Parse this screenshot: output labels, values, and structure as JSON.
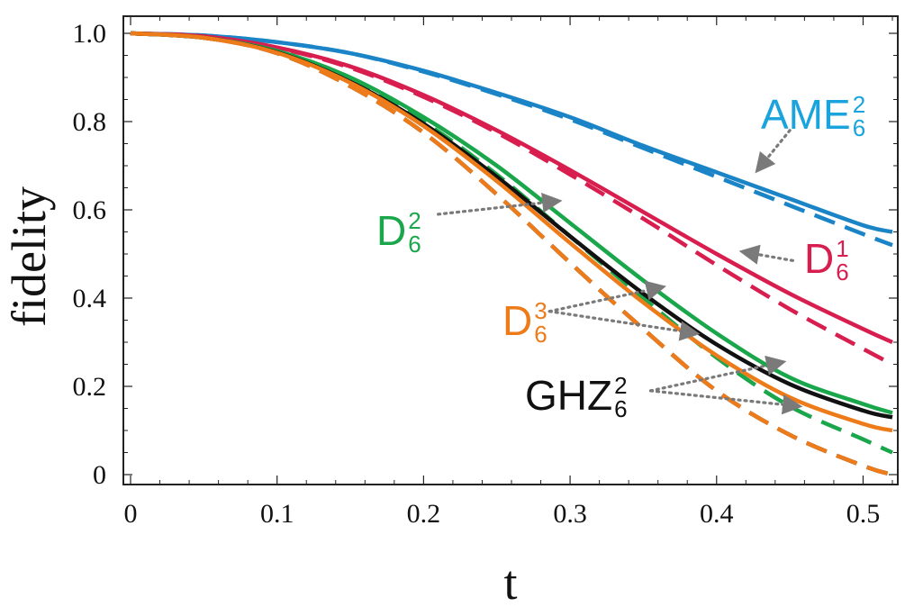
{
  "chart_data": {
    "type": "line",
    "xlabel": "t",
    "ylabel": "fidelity",
    "xlim": [
      0,
      0.52
    ],
    "ylim": [
      0,
      1.0
    ],
    "x_ticks": [
      "0",
      "0.1",
      "0.2",
      "0.3",
      "0.4",
      "0.5"
    ],
    "y_ticks": [
      "0",
      "0.2",
      "0.4",
      "0.6",
      "0.8",
      "1.0"
    ],
    "grid": false,
    "series": [
      {
        "name": "AME_6^2 exact",
        "state": "AME",
        "style": "solid",
        "color": "#1a84c7",
        "x": [
          0,
          0.05,
          0.1,
          0.15,
          0.2,
          0.25,
          0.3,
          0.35,
          0.4,
          0.45,
          0.5,
          0.52
        ],
        "y": [
          1.0,
          0.995,
          0.98,
          0.955,
          0.915,
          0.865,
          0.81,
          0.745,
          0.685,
          0.625,
          0.565,
          0.55
        ]
      },
      {
        "name": "AME_6^2 approx",
        "state": "AME",
        "style": "dashed",
        "color": "#1a84c7",
        "x": [
          0,
          0.05,
          0.1,
          0.15,
          0.2,
          0.25,
          0.3,
          0.35,
          0.4,
          0.45,
          0.5,
          0.52
        ],
        "y": [
          1.0,
          0.995,
          0.98,
          0.955,
          0.913,
          0.862,
          0.805,
          0.74,
          0.675,
          0.61,
          0.545,
          0.52
        ]
      },
      {
        "name": "D_6^1 exact",
        "state": "D1",
        "style": "solid",
        "color": "#d81e4f",
        "x": [
          0,
          0.05,
          0.1,
          0.15,
          0.2,
          0.25,
          0.3,
          0.35,
          0.4,
          0.45,
          0.5,
          0.52
        ],
        "y": [
          1.0,
          0.993,
          0.968,
          0.925,
          0.86,
          0.78,
          0.69,
          0.595,
          0.5,
          0.41,
          0.33,
          0.3
        ]
      },
      {
        "name": "D_6^1 approx",
        "state": "D1",
        "style": "dashed",
        "color": "#d81e4f",
        "x": [
          0,
          0.05,
          0.1,
          0.15,
          0.2,
          0.25,
          0.3,
          0.35,
          0.4,
          0.45,
          0.5,
          0.52
        ],
        "y": [
          1.0,
          0.993,
          0.967,
          0.922,
          0.856,
          0.775,
          0.68,
          0.58,
          0.475,
          0.375,
          0.285,
          0.25
        ]
      },
      {
        "name": "D_6^2 exact",
        "state": "D2",
        "style": "solid",
        "color": "#1aa64b",
        "x": [
          0,
          0.05,
          0.1,
          0.15,
          0.2,
          0.25,
          0.3,
          0.35,
          0.4,
          0.45,
          0.5,
          0.52
        ],
        "y": [
          1.0,
          0.99,
          0.96,
          0.9,
          0.81,
          0.7,
          0.57,
          0.44,
          0.32,
          0.22,
          0.16,
          0.14
        ]
      },
      {
        "name": "D_6^2 approx",
        "state": "D2",
        "style": "dashed",
        "color": "#1aa64b",
        "x": [
          0,
          0.05,
          0.1,
          0.15,
          0.2,
          0.25,
          0.3,
          0.35,
          0.4,
          0.45,
          0.5,
          0.52
        ],
        "y": [
          1.0,
          0.99,
          0.958,
          0.895,
          0.8,
          0.68,
          0.54,
          0.4,
          0.265,
          0.155,
          0.08,
          0.05
        ]
      },
      {
        "name": "GHZ_6^2 exact",
        "state": "GHZ",
        "style": "solid",
        "color": "#111111",
        "x": [
          0,
          0.05,
          0.1,
          0.15,
          0.2,
          0.25,
          0.3,
          0.35,
          0.4,
          0.45,
          0.5,
          0.52
        ],
        "y": [
          1.0,
          0.99,
          0.957,
          0.89,
          0.795,
          0.675,
          0.54,
          0.41,
          0.295,
          0.205,
          0.145,
          0.13
        ]
      },
      {
        "name": "GHZ_6^2 approx",
        "state": "GHZ",
        "style": "dashed",
        "color": "#111111",
        "x": [
          0,
          0.05,
          0.1,
          0.15,
          0.2,
          0.25,
          0.3,
          0.35,
          0.4,
          0.45,
          0.5,
          0.52
        ],
        "y": [
          1.0,
          0.99,
          0.955,
          0.88,
          0.775,
          0.635,
          0.48,
          0.33,
          0.19,
          0.09,
          0.02,
          0.0
        ]
      },
      {
        "name": "D_6^3 exact",
        "state": "D3",
        "style": "solid",
        "color": "#ee7b1a",
        "x": [
          0,
          0.05,
          0.1,
          0.15,
          0.2,
          0.25,
          0.3,
          0.35,
          0.4,
          0.45,
          0.5,
          0.52
        ],
        "y": [
          1.0,
          0.99,
          0.956,
          0.888,
          0.79,
          0.665,
          0.525,
          0.39,
          0.27,
          0.175,
          0.115,
          0.1
        ]
      },
      {
        "name": "D_6^3 approx",
        "state": "D3",
        "style": "dashed",
        "color": "#ee7b1a",
        "x": [
          0,
          0.05,
          0.1,
          0.15,
          0.2,
          0.25,
          0.3,
          0.35,
          0.4,
          0.45,
          0.5,
          0.52
        ],
        "y": [
          1.0,
          0.99,
          0.955,
          0.88,
          0.775,
          0.635,
          0.48,
          0.33,
          0.19,
          0.09,
          0.02,
          0.0
        ]
      }
    ],
    "annotations": [
      {
        "id": "ame",
        "base": "AME",
        "sub": "6",
        "sup": "2",
        "color": "#1aa3dc",
        "arrow_from": {
          "x": 0.45,
          "y": 0.78
        },
        "arrow_to": [
          {
            "x": 0.428,
            "y": 0.69
          }
        ]
      },
      {
        "id": "d1",
        "base": "D",
        "sub": "6",
        "sup": "1",
        "color": "#d81e4f",
        "arrow_from": {
          "x": 0.452,
          "y": 0.485
        },
        "arrow_to": [
          {
            "x": 0.418,
            "y": 0.505
          }
        ]
      },
      {
        "id": "d2",
        "base": "D",
        "sub": "6",
        "sup": "2",
        "color": "#1aa64b",
        "arrow_from": {
          "x": 0.21,
          "y": 0.59
        },
        "arrow_to": [
          {
            "x": 0.292,
            "y": 0.62
          }
        ]
      },
      {
        "id": "d3",
        "base": "D",
        "sub": "6",
        "sup": "3",
        "color": "#ee7b1a",
        "arrow_from": {
          "x": 0.286,
          "y": 0.37
        },
        "arrow_to": [
          {
            "x": 0.363,
            "y": 0.425
          },
          {
            "x": 0.386,
            "y": 0.32
          }
        ]
      },
      {
        "id": "ghz",
        "base": "GHZ",
        "sub": "6",
        "sup": "2",
        "color": "#111111",
        "arrow_from": {
          "x": 0.355,
          "y": 0.19
        },
        "arrow_to": [
          {
            "x": 0.445,
            "y": 0.255
          },
          {
            "x": 0.456,
            "y": 0.155
          }
        ]
      }
    ]
  }
}
